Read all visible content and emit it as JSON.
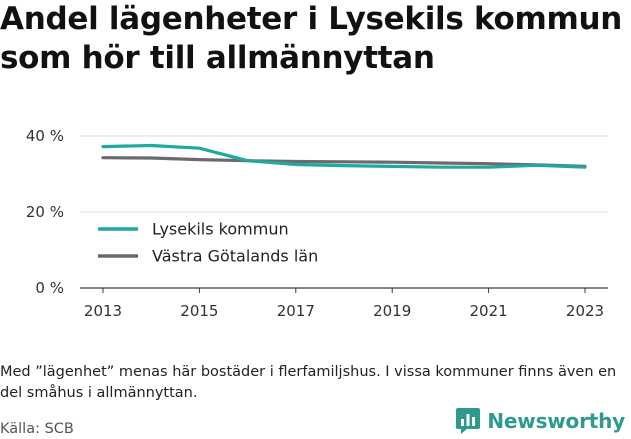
{
  "title": "Andel lägenheter i Lysekils kommun som hör till allmännyttan",
  "note": "Med ”lägenhet” menas här bostäder i flerfamiljshus. I vissa kommuner finns även en del småhus i allmännyttan.",
  "source": "Källa: SCB",
  "brand": {
    "name": "Newsworthy",
    "logo_icon": "bar-chart-speech-bubble-icon",
    "color": "#2e9a8e"
  },
  "chart_data": {
    "type": "line",
    "x": [
      2013,
      2014,
      2015,
      2016,
      2017,
      2018,
      2019,
      2020,
      2021,
      2022,
      2023
    ],
    "xticks": [
      "2013",
      "2015",
      "2017",
      "2019",
      "2021",
      "2023"
    ],
    "yticks": [
      "0 %",
      "20 %",
      "40 %"
    ],
    "ylim": [
      0,
      40
    ],
    "grid": true,
    "legend_position": "bottom-left",
    "series": [
      {
        "name": "Lysekils kommun",
        "color": "#1fa99f",
        "values": [
          37.2,
          37.5,
          36.8,
          33.5,
          32.5,
          32.2,
          32.0,
          31.8,
          31.8,
          32.3,
          31.8
        ]
      },
      {
        "name": "Västra Götalands län",
        "color": "#6b6b6d",
        "values": [
          34.3,
          34.2,
          33.8,
          33.5,
          33.3,
          33.2,
          33.1,
          32.9,
          32.7,
          32.4,
          32.0
        ]
      }
    ]
  }
}
